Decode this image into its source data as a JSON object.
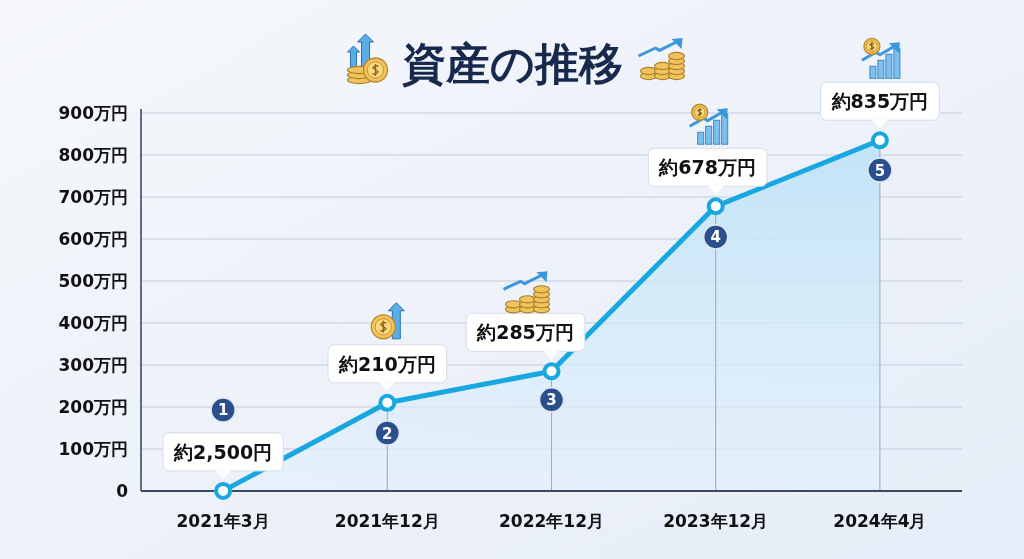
{
  "chart_data": {
    "type": "area",
    "title": "資産の推移",
    "categories": [
      "2021年3月",
      "2021年12月",
      "2022年12月",
      "2023年12月",
      "2024年4月"
    ],
    "series": [
      {
        "color": "#19a7e0",
        "values": [
          0.25,
          210,
          285,
          678,
          835
        ],
        "value_labels": [
          "約2,500円",
          "約210万円",
          "約285万円",
          "約678万円",
          "約835万円"
        ]
      }
    ],
    "ylim": [
      0,
      900
    ],
    "yticks": [
      0,
      {
        "value": 100,
        "label": "100万円"
      },
      {
        "value": 200,
        "label": "200万円"
      },
      {
        "value": 300,
        "label": "300万円"
      },
      {
        "value": 400,
        "label": "400万円"
      },
      {
        "value": 500,
        "label": "500万円"
      },
      {
        "value": 600,
        "label": "600万円"
      },
      {
        "value": 700,
        "label": "700万円"
      },
      {
        "value": 800,
        "label": "800万円"
      },
      {
        "value": 900,
        "label": "900万円"
      }
    ],
    "grid": true,
    "marker": "circle",
    "annotations": [
      {
        "text": "1",
        "x": "2021年3月",
        "y": 193
      },
      {
        "text": "2",
        "x": "2021年12月",
        "y": 138
      },
      {
        "text": "3",
        "x": "2022年12月",
        "y": 217
      },
      {
        "text": "4",
        "x": "2023年12月",
        "y": 605
      },
      {
        "text": "5",
        "x": "2024年4月",
        "y": 764
      }
    ]
  }
}
